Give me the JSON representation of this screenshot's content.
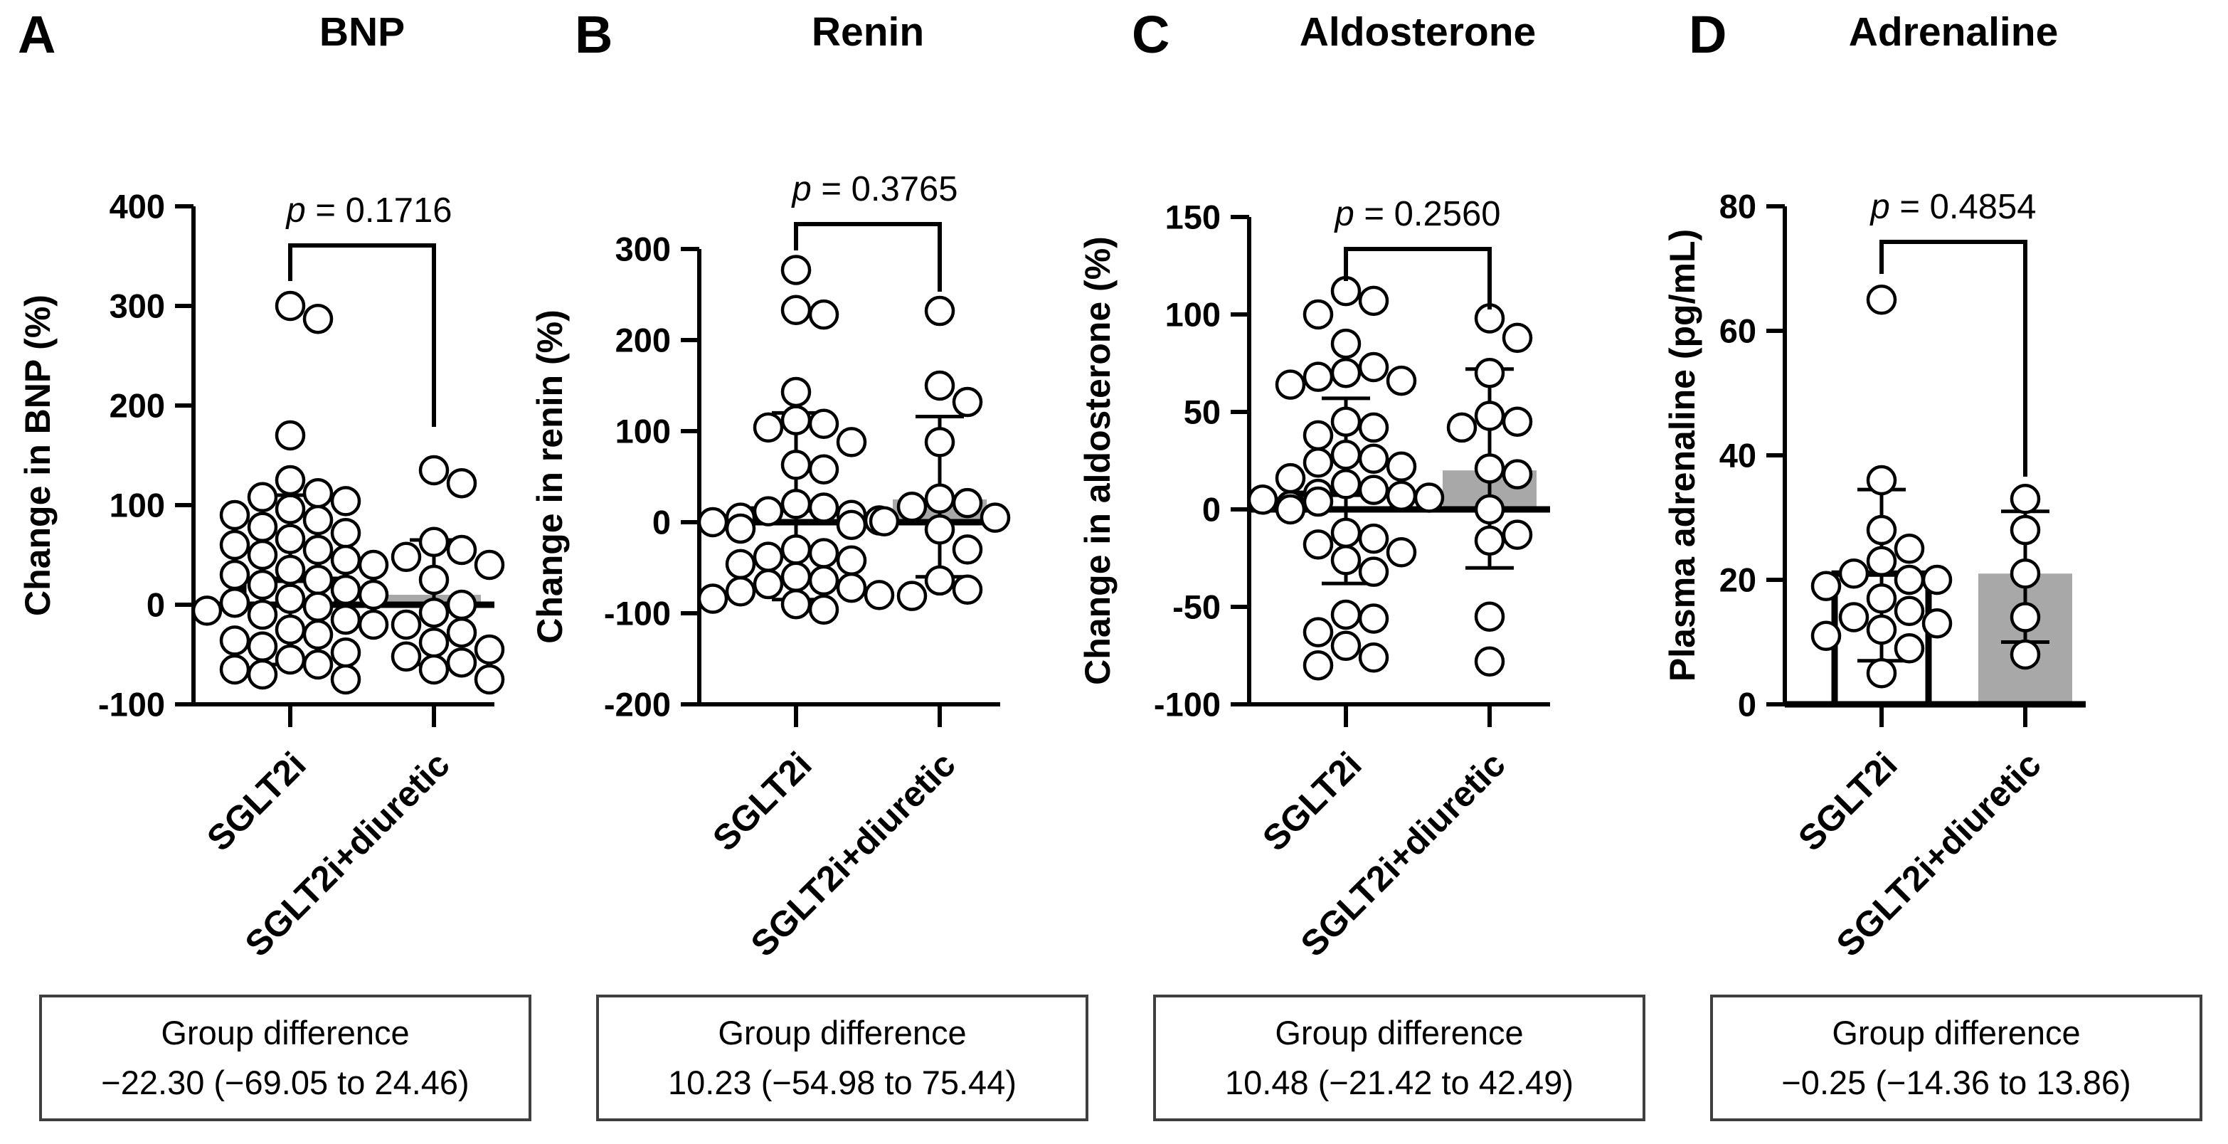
{
  "figure": {
    "panel_letters": [
      "A",
      "B",
      "C",
      "D"
    ],
    "diff_heading": "Group difference",
    "group_labels": [
      "SGLT2i",
      "SGLT2i+diuretic"
    ],
    "colors": {
      "ink": "#000000",
      "open_bar_fill": "#ffffff",
      "gray_bar_fill": "#a8a8a8",
      "box_border": "#3f3f3f",
      "background": "#ffffff"
    }
  },
  "chart_data": [
    {
      "type": "scatter",
      "panel": "A",
      "title": "BNP",
      "ylabel": "Change in BNP (%)",
      "ylim": [
        -100,
        400
      ],
      "yticks": [
        400,
        300,
        200,
        100,
        0,
        -100
      ],
      "categories": [
        "SGLT2i",
        "SGLT2i+diuretic"
      ],
      "p_symbol": "p",
      "p_text": " = 0.1716",
      "group_difference": "−22.30 (−69.05 to 24.46)",
      "series": [
        {
          "name": "SGLT2i",
          "bar_style": "open",
          "mean": 25,
          "err_low": -60,
          "err_high": 110,
          "points": [
            300,
            287,
            170,
            125,
            112,
            108,
            104,
            96,
            90,
            85,
            78,
            72,
            66,
            60,
            55,
            50,
            45,
            40,
            35,
            30,
            25,
            20,
            15,
            10,
            6,
            2,
            -2,
            -6,
            -10,
            -15,
            -20,
            -25,
            -30,
            -36,
            -42,
            -48,
            -55,
            -60,
            -65,
            -70,
            -75
          ]
        },
        {
          "name": "SGLT2i+diuretic",
          "bar_style": "gray",
          "mean": 10,
          "err_low": -60,
          "err_high": 65,
          "points": [
            135,
            122,
            63,
            55,
            48,
            40,
            25,
            0,
            -8,
            -20,
            -28,
            -38,
            -45,
            -52,
            -58,
            -65,
            -75
          ]
        }
      ],
      "layout": {
        "axis_x": 272,
        "y_top": 290,
        "y_bottom": 990,
        "g1": 408,
        "g2": 610,
        "right": 695,
        "ylabel_x": 70,
        "bracket": {
          "top": 345,
          "left_end": 395,
          "right_end": 600
        },
        "p_center": 509,
        "p_top": 268
      }
    },
    {
      "type": "scatter",
      "panel": "B",
      "title": "Renin",
      "ylabel": "Change in renin (%)",
      "ylim": [
        -200,
        300
      ],
      "yticks": [
        300,
        200,
        100,
        0,
        -100,
        -200
      ],
      "categories": [
        "SGLT2i",
        "SGLT2i+diuretic"
      ],
      "p_symbol": "p",
      "p_text": " = 0.3765",
      "group_difference": "10.23 (−54.98 to 75.44)",
      "series": [
        {
          "name": "SGLT2i",
          "bar_style": "open",
          "mean": 14,
          "err_low": -85,
          "err_high": 120,
          "points": [
            277,
            233,
            228,
            143,
            112,
            108,
            104,
            88,
            63,
            58,
            20,
            16,
            12,
            8,
            5,
            2,
            0,
            -3,
            -7,
            -30,
            -34,
            -38,
            -42,
            -46,
            -60,
            -64,
            -68,
            -72,
            -76,
            -80,
            -84,
            -90,
            -96
          ]
        },
        {
          "name": "SGLT2i+diuretic",
          "bar_style": "gray",
          "mean": 25,
          "err_low": -60,
          "err_high": 116,
          "points": [
            232,
            150,
            132,
            88,
            26,
            21,
            17,
            5,
            1,
            -8,
            -30,
            -64,
            -74,
            -81
          ]
        }
      ],
      "layout": {
        "axis_x": 983,
        "y_top": 350,
        "y_bottom": 990,
        "g1": 1119,
        "g2": 1321,
        "right": 1406,
        "ylabel_x": 790,
        "bracket": {
          "top": 315,
          "left_end": 352,
          "right_end": 410
        },
        "p_center": 1220,
        "p_top": 238
      }
    },
    {
      "type": "scatter",
      "panel": "C",
      "title": "Aldosterone",
      "ylabel": "Change in aldosterone (%)",
      "ylim": [
        -100,
        150
      ],
      "yticks": [
        150,
        100,
        50,
        0,
        -50,
        -100
      ],
      "categories": [
        "SGLT2i",
        "SGLT2i+diuretic"
      ],
      "p_symbol": "p",
      "p_text": " = 0.2560",
      "group_difference": "10.48 (−21.42 to 42.49)",
      "series": [
        {
          "name": "SGLT2i",
          "bar_style": "open",
          "mean": 8,
          "err_low": -38,
          "err_high": 57,
          "points": [
            112,
            107,
            100,
            85,
            73,
            70,
            68,
            66,
            64,
            45,
            42,
            38,
            28,
            26,
            24,
            22,
            16,
            13,
            10,
            8,
            7,
            6,
            5,
            4,
            2,
            0,
            -12,
            -15,
            -18,
            -22,
            -26,
            -32,
            -54,
            -56,
            -63,
            -70,
            -76,
            -80
          ]
        },
        {
          "name": "SGLT2i+diuretic",
          "bar_style": "gray",
          "mean": 20,
          "err_low": -30,
          "err_high": 72,
          "points": [
            98,
            88,
            70,
            48,
            45,
            42,
            21,
            18,
            0,
            -13,
            -16,
            -55,
            -78
          ]
        }
      ],
      "layout": {
        "axis_x": 1756,
        "y_top": 305,
        "y_bottom": 990,
        "g1": 1892,
        "g2": 2094,
        "right": 2179,
        "ylabel_x": 1560,
        "bracket": {
          "top": 350,
          "left_end": 395,
          "right_end": 435
        },
        "p_center": 1993,
        "p_top": 273
      }
    },
    {
      "type": "scatter",
      "panel": "D",
      "title": "Adrenaline",
      "ylabel": "Plasma adrenaline (pg/mL)",
      "ylim": [
        0,
        80
      ],
      "yticks": [
        80,
        60,
        40,
        20,
        0
      ],
      "categories": [
        "SGLT2i",
        "SGLT2i+diuretic"
      ],
      "p_symbol": "p",
      "p_text": " = 0.4854",
      "group_difference": "−0.25 (−14.36 to 13.86)",
      "series": [
        {
          "name": "SGLT2i",
          "bar_style": "open",
          "mean": 21,
          "err_low": 7,
          "err_high": 34.5,
          "points": [
            65,
            36,
            28,
            25,
            23,
            21,
            20,
            20,
            19,
            17,
            15,
            14,
            13,
            12,
            11,
            9,
            5
          ]
        },
        {
          "name": "SGLT2i+diuretic",
          "bar_style": "gray",
          "mean": 21,
          "err_low": 10,
          "err_high": 31,
          "points": [
            33,
            28,
            21,
            14,
            8
          ]
        }
      ],
      "layout": {
        "axis_x": 2509,
        "y_top": 290,
        "y_bottom": 990,
        "g1": 2645,
        "g2": 2847,
        "right": 2932,
        "ylabel_x": 2382,
        "bracket": {
          "top": 340,
          "left_end": 385,
          "right_end": 670
        },
        "p_center": 2746,
        "p_top": 263
      }
    }
  ]
}
